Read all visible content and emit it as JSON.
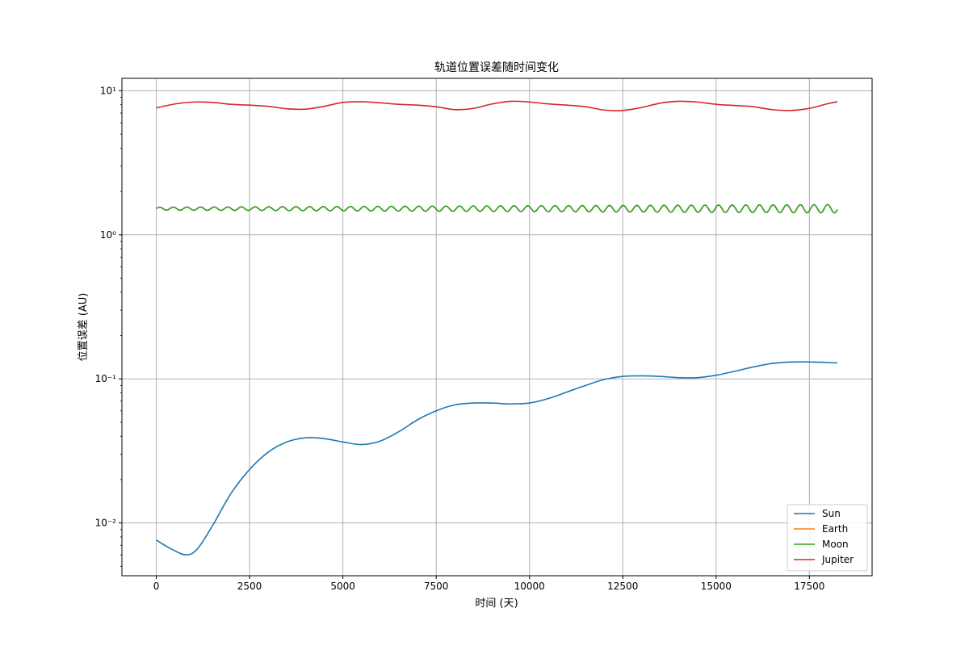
{
  "chart_data": {
    "type": "line",
    "title": "轨道位置误差随时间变化",
    "xlabel": "时间 (天)",
    "ylabel": "位置误差 (AU)",
    "xlim": [
      -920,
      19180
    ],
    "ylim": [
      0.0043,
      12.2
    ],
    "yscale": "log",
    "grid": true,
    "legend_position": "lower-right",
    "x_ticks": [
      0,
      2500,
      5000,
      7500,
      10000,
      12500,
      15000,
      17500
    ],
    "x_tick_labels": [
      "0",
      "2500",
      "5000",
      "7500",
      "10000",
      "12500",
      "15000",
      "17500"
    ],
    "y_ticks": [
      0.01,
      0.1,
      1,
      10
    ],
    "y_tick_labels": [
      "10⁻²",
      "10⁻¹",
      "10⁰",
      "10¹"
    ],
    "series": [
      {
        "name": "Sun",
        "color": "#1f77b4",
        "x": [
          0,
          400,
          800,
          1100,
          1500,
          2000,
          2500,
          3000,
          3500,
          4000,
          4500,
          5000,
          5500,
          6000,
          6500,
          7000,
          7500,
          8000,
          8500,
          9000,
          9500,
          10000,
          10500,
          11000,
          11500,
          12000,
          12500,
          13000,
          13500,
          14000,
          14500,
          15000,
          15500,
          16000,
          16500,
          17000,
          17500,
          18000,
          18250
        ],
        "values": [
          0.0076,
          0.0066,
          0.006,
          0.0066,
          0.0095,
          0.016,
          0.0235,
          0.031,
          0.0365,
          0.039,
          0.0385,
          0.0365,
          0.035,
          0.037,
          0.043,
          0.052,
          0.06,
          0.066,
          0.068,
          0.068,
          0.067,
          0.068,
          0.073,
          0.081,
          0.09,
          0.099,
          0.104,
          0.105,
          0.104,
          0.102,
          0.102,
          0.106,
          0.113,
          0.121,
          0.128,
          0.131,
          0.131,
          0.13,
          0.129
        ]
      },
      {
        "name": "Earth",
        "color": "#ff7f0e",
        "generator": {
          "base": 1.52,
          "amplitude_start": 0.035,
          "amplitude_end": 0.1,
          "period_days": 365.25,
          "x_start": 0,
          "x_end": 18250
        }
      },
      {
        "name": "Moon",
        "color": "#2ca02c",
        "generator": {
          "base": 1.52,
          "amplitude_start": 0.035,
          "amplitude_end": 0.1,
          "period_days": 365.25,
          "x_start": 0,
          "x_end": 18250
        }
      },
      {
        "name": "Jupiter",
        "color": "#d62728",
        "x": [
          0,
          500,
          1000,
          1500,
          2000,
          2500,
          3000,
          3500,
          4000,
          4500,
          5000,
          5500,
          6000,
          6500,
          7000,
          7500,
          8000,
          8500,
          9000,
          9500,
          10000,
          10500,
          11000,
          11500,
          12000,
          12500,
          13000,
          13500,
          14000,
          14500,
          15000,
          15500,
          16000,
          16500,
          17000,
          17500,
          18000,
          18250
        ],
        "values": [
          7.6,
          8.1,
          8.35,
          8.3,
          8.05,
          7.95,
          7.8,
          7.5,
          7.45,
          7.8,
          8.3,
          8.4,
          8.25,
          8.05,
          7.95,
          7.75,
          7.4,
          7.55,
          8.1,
          8.45,
          8.35,
          8.1,
          7.95,
          7.75,
          7.35,
          7.3,
          7.65,
          8.2,
          8.45,
          8.35,
          8.05,
          7.9,
          7.75,
          7.4,
          7.3,
          7.55,
          8.15,
          8.4
        ]
      }
    ]
  }
}
